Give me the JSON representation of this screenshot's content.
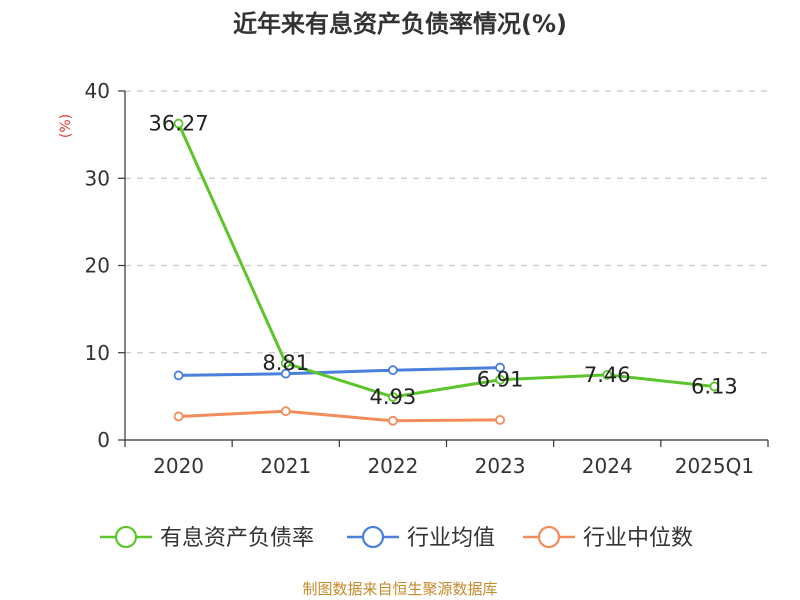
{
  "title": "近年来有息资产负债率情况(%)",
  "footer": "制图数据来自恒生聚源数据库",
  "chart_data": {
    "type": "line",
    "title": "近年来有息资产负债率情况(%)",
    "ylabel": "(%)",
    "xlabel": "",
    "categories": [
      "2020",
      "2021",
      "2022",
      "2023",
      "2024",
      "2025Q1"
    ],
    "ylim": [
      0,
      40
    ],
    "yticks": [
      0,
      10,
      20,
      30,
      40
    ],
    "grid": true,
    "legend_position": "bottom",
    "series": [
      {
        "name": "有息资产负债率",
        "color": "#5cc52b",
        "values": [
          36.27,
          8.81,
          4.93,
          6.91,
          7.46,
          6.13
        ],
        "labels": [
          "36.27",
          "8.81",
          "4.93",
          "6.91",
          "7.46",
          "6.13"
        ]
      },
      {
        "name": "行业均值",
        "color": "#4a7fdc",
        "values": [
          7.4,
          7.6,
          8.0,
          8.3,
          null,
          null
        ]
      },
      {
        "name": "行业中位数",
        "color": "#f28c5a",
        "values": [
          2.7,
          3.3,
          2.2,
          2.3,
          null,
          null
        ]
      }
    ]
  }
}
